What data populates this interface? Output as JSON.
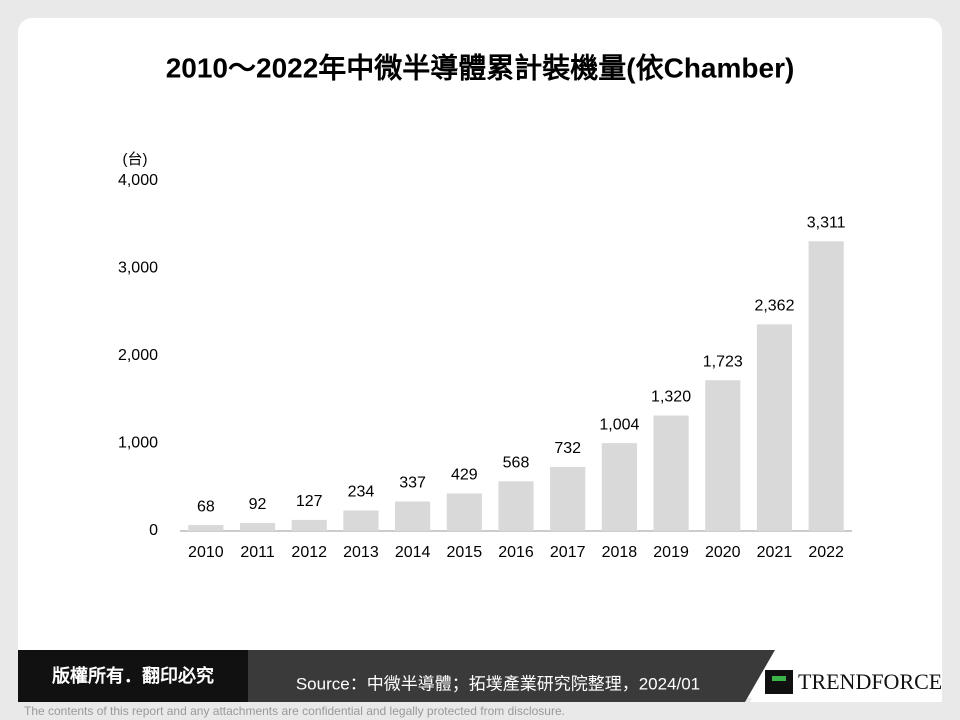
{
  "chart_data": {
    "type": "bar",
    "title": "2010～2022年中微半導體累計裝機量(依Chamber)",
    "y_label": "(台)",
    "categories": [
      "2010",
      "2011",
      "2012",
      "2013",
      "2014",
      "2015",
      "2016",
      "2017",
      "2018",
      "2019",
      "2020",
      "2021",
      "2022"
    ],
    "values": [
      68,
      92,
      127,
      234,
      337,
      429,
      568,
      732,
      1004,
      1320,
      1723,
      2362,
      3311
    ],
    "value_labels": [
      "68",
      "92",
      "127",
      "234",
      "337",
      "429",
      "568",
      "732",
      "1,004",
      "1,320",
      "1,723",
      "2,362",
      "3,311"
    ],
    "color": "#d9d9d9",
    "ylim": [
      0,
      4000
    ],
    "yticks": [
      0,
      {
        "value": 1000,
        "label": "1,000"
      },
      {
        "value": 2000,
        "label": "2,000"
      },
      {
        "value": 3000,
        "label": "3,000"
      },
      {
        "value": 4000,
        "label": "4,000"
      }
    ],
    "grid": false
  },
  "footer": {
    "copyright": "版權所有．翻印必究",
    "source": "Source：中微半導體；拓墣產業研究院整理，2024/01",
    "logo": "TRENDFORCE",
    "disclaimer": "The contents of this report and any attachments are confidential and legally protected from disclosure."
  }
}
